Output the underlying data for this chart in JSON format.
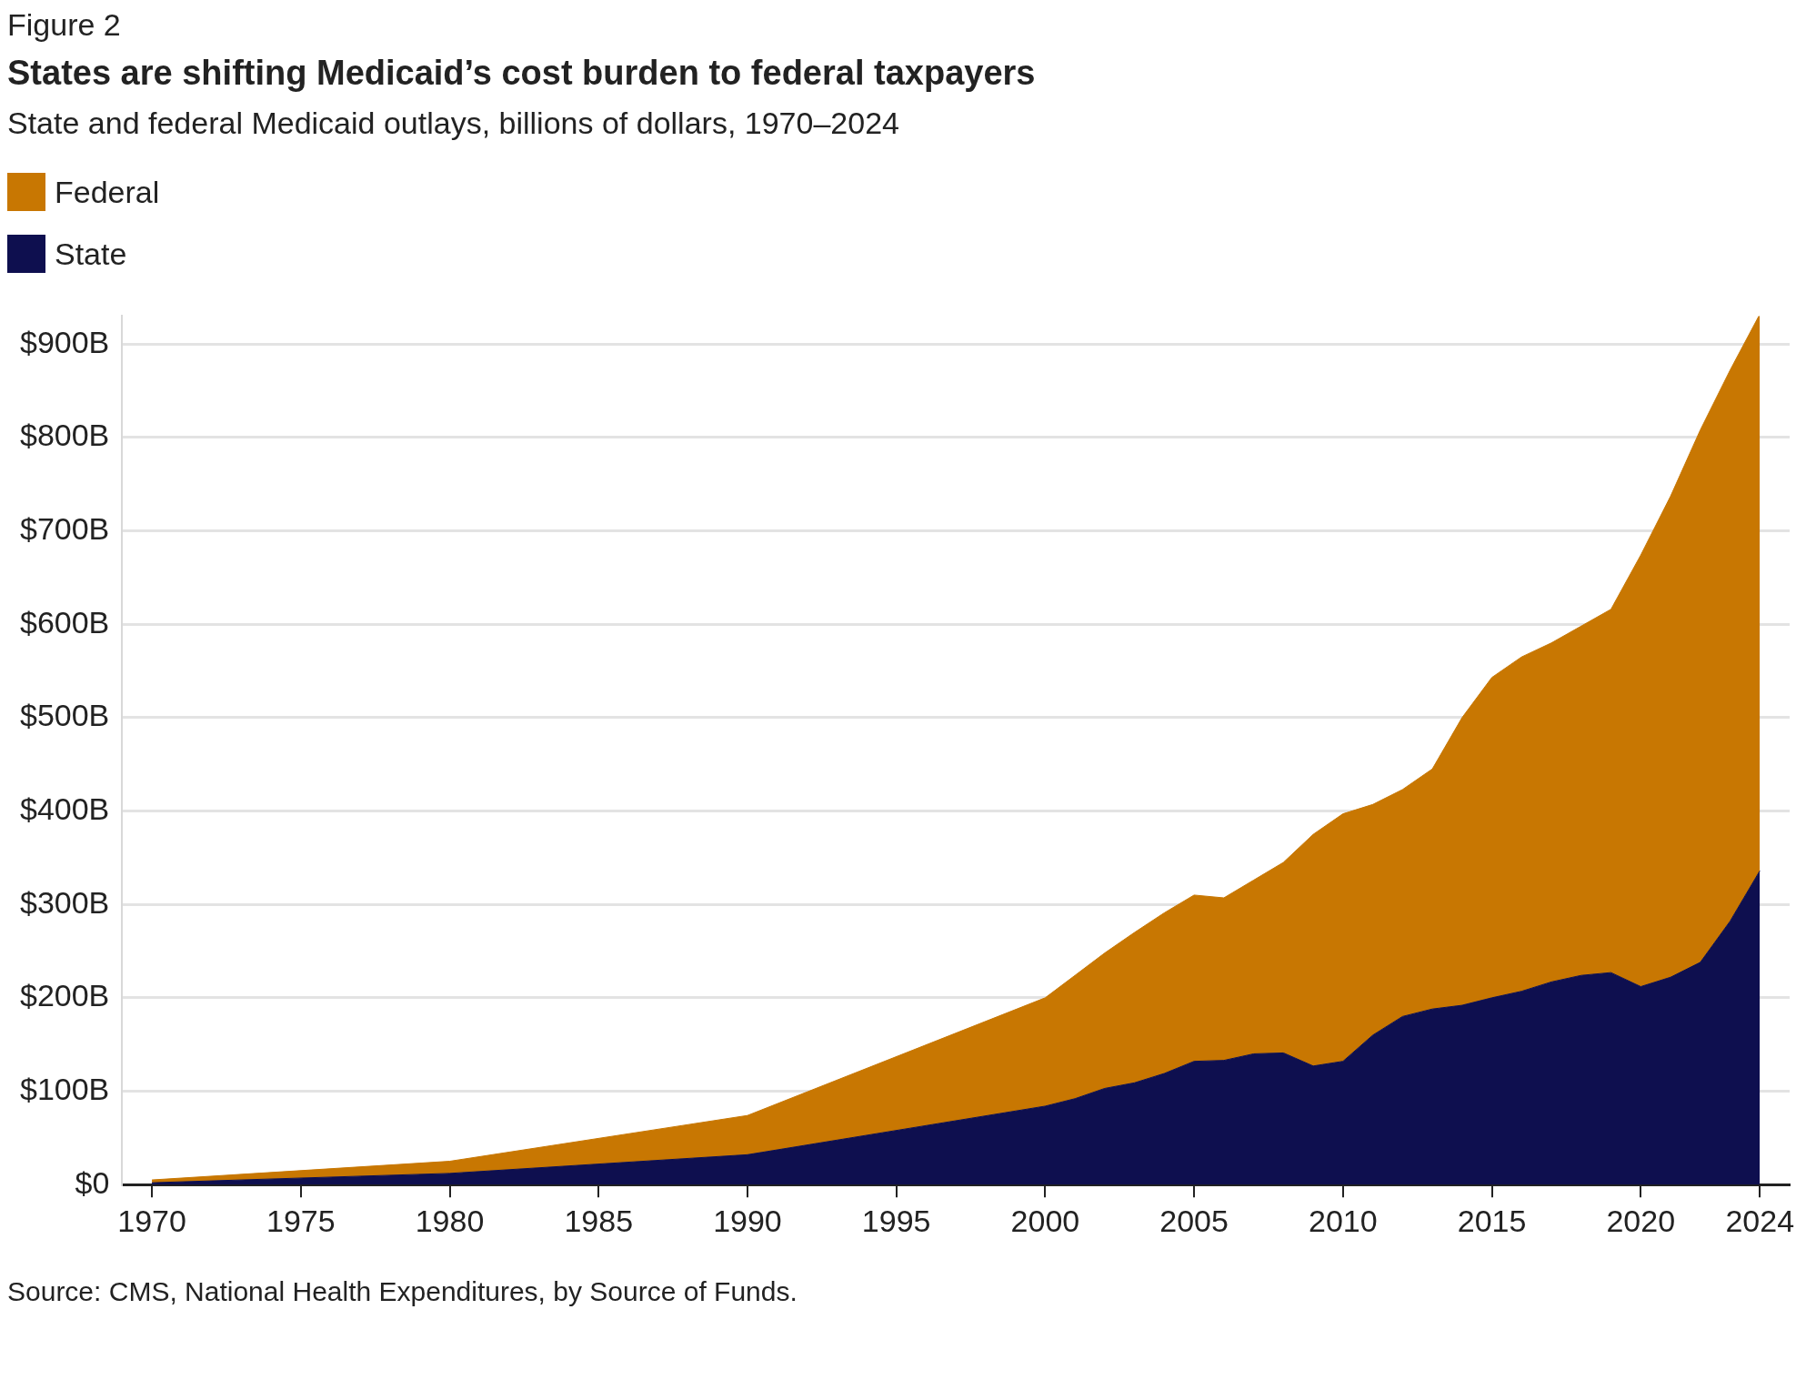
{
  "chart_data": {
    "type": "area",
    "title": "States are shifting Medicaid’s cost burden to federal taxpayers",
    "subtitle": "State and federal Medicaid outlays, billions of dollars, 1970–2024",
    "annotations": [
      "Figure 2",
      "Source: CMS, National Health Expenditures, by Source of Funds."
    ],
    "x": [
      1970,
      1980,
      1990,
      2000,
      2001,
      2002,
      2003,
      2004,
      2005,
      2006,
      2007,
      2008,
      2009,
      2010,
      2011,
      2012,
      2013,
      2014,
      2015,
      2016,
      2017,
      2018,
      2019,
      2020,
      2021,
      2022,
      2023,
      2024
    ],
    "stacked": true,
    "series": [
      {
        "name": "State",
        "color": "#0e0f4f",
        "values": [
          2,
          12,
          32,
          84,
          92,
          103,
          109,
          119,
          132,
          133,
          140,
          141,
          127,
          132,
          160,
          180,
          188,
          192,
          200,
          207,
          217,
          224,
          227,
          212,
          222,
          238,
          282,
          336
        ]
      },
      {
        "name": "Federal",
        "color": "#c87702",
        "values": [
          3,
          13,
          42,
          116,
          132,
          145,
          161,
          172,
          178,
          174,
          186,
          204,
          248,
          265,
          247,
          243,
          257,
          308,
          343,
          358,
          363,
          374,
          389,
          462,
          515,
          570,
          590,
          596
        ]
      }
    ],
    "xlim": [
      1969,
      2025
    ],
    "xticks": [
      1970,
      1975,
      1980,
      1985,
      1990,
      1995,
      2000,
      2005,
      2010,
      2015,
      2020,
      2024
    ],
    "ylim": [
      0,
      930
    ],
    "yticks": [
      {
        "value": 0,
        "label": "$0"
      },
      {
        "value": 100,
        "label": "$100B"
      },
      {
        "value": 200,
        "label": "$200B"
      },
      {
        "value": 300,
        "label": "$300B"
      },
      {
        "value": 400,
        "label": "$400B"
      },
      {
        "value": 500,
        "label": "$500B"
      },
      {
        "value": 600,
        "label": "$600B"
      },
      {
        "value": 700,
        "label": "$700B"
      },
      {
        "value": 800,
        "label": "$800B"
      },
      {
        "value": 900,
        "label": "$900B"
      }
    ],
    "grid": "y",
    "legend": "top left",
    "marker": "none"
  }
}
